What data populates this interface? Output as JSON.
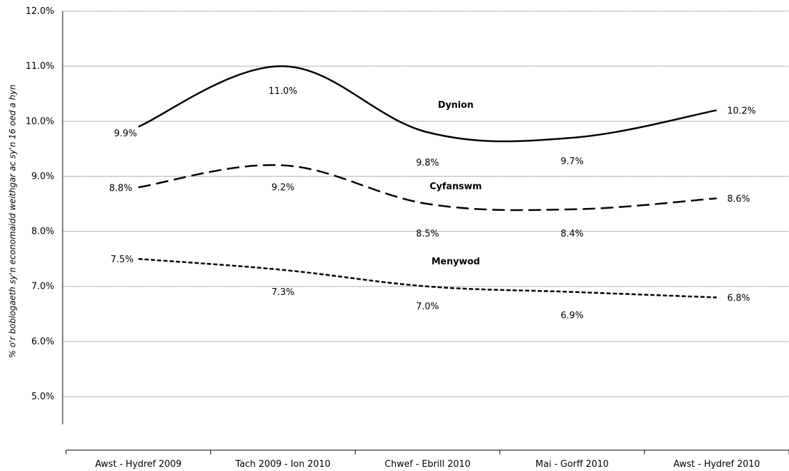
{
  "chart_data": {
    "type": "line",
    "title": "",
    "xlabel": "",
    "ylabel": "% o'r boblogaeth sy'n economaidd weithgar ac sy'n 16 oed a hyn",
    "categories": [
      "Awst - Hydref 2009",
      "Tach 2009 - Ion 2010",
      "Chwef - Ebrill 2010",
      "Mai - Gorff 2010",
      "Awst - Hydref 2010"
    ],
    "ylim": [
      5.0,
      12.0
    ],
    "yticks": [
      "5.0%",
      "6.0%",
      "7.0%",
      "8.0%",
      "9.0%",
      "10.0%",
      "11.0%",
      "12.0%"
    ],
    "grid": true,
    "series": [
      {
        "name": "Dynion",
        "style": "solid",
        "values": [
          9.9,
          11.0,
          9.8,
          9.7,
          10.2
        ],
        "labels": [
          "9.9%",
          "11.0%",
          "9.8%",
          "9.7%",
          "10.2%"
        ]
      },
      {
        "name": "Cyfanswm",
        "style": "dashed",
        "values": [
          8.8,
          9.2,
          8.5,
          8.4,
          8.6
        ],
        "labels": [
          "8.8%",
          "9.2%",
          "8.5%",
          "8.4%",
          "8.6%"
        ]
      },
      {
        "name": "Menywod",
        "style": "dotted",
        "values": [
          7.5,
          7.3,
          7.0,
          6.9,
          6.8
        ],
        "labels": [
          "7.5%",
          "7.3%",
          "7.0%",
          "6.9%",
          "6.8%"
        ]
      }
    ]
  }
}
